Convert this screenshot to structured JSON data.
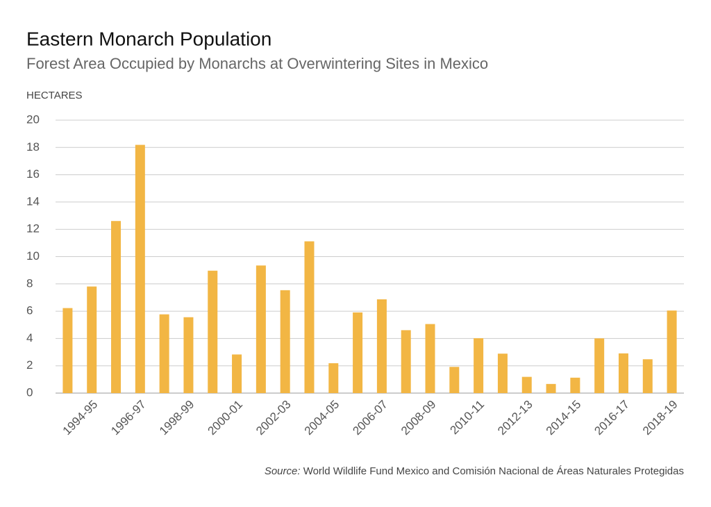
{
  "chart_data": {
    "type": "bar",
    "title": "Eastern Monarch Population",
    "subtitle": "Forest Area Occupied by Monarchs at Overwintering Sites in Mexico",
    "y_label": "HECTARES",
    "source_label": "Source:",
    "source_text": "World Wildlife Fund Mexico and Comisión Nacional de Áreas Naturales Protegidas",
    "categories": [
      null,
      "1994-95",
      null,
      "1996-97",
      null,
      "1998-99",
      null,
      "2000-01",
      null,
      "2002-03",
      null,
      "2004-05",
      null,
      "2006-07",
      null,
      "2008-09",
      null,
      "2010-11",
      null,
      "2012-13",
      null,
      "2014-15",
      null,
      "2016-17",
      null,
      "2018-19"
    ],
    "values": [
      6.23,
      7.81,
      12.61,
      18.19,
      5.77,
      5.56,
      8.97,
      2.83,
      9.35,
      7.54,
      11.12,
      2.19,
      5.91,
      6.87,
      4.61,
      5.06,
      1.92,
      4.02,
      2.89,
      1.19,
      0.67,
      1.13,
      4.01,
      2.91,
      2.48,
      6.05
    ],
    "color": "#f2b644",
    "ylim": [
      0,
      20
    ],
    "yticks": [
      0,
      2,
      4,
      6,
      8,
      10,
      12,
      14,
      16,
      18,
      20
    ],
    "grid": true
  }
}
